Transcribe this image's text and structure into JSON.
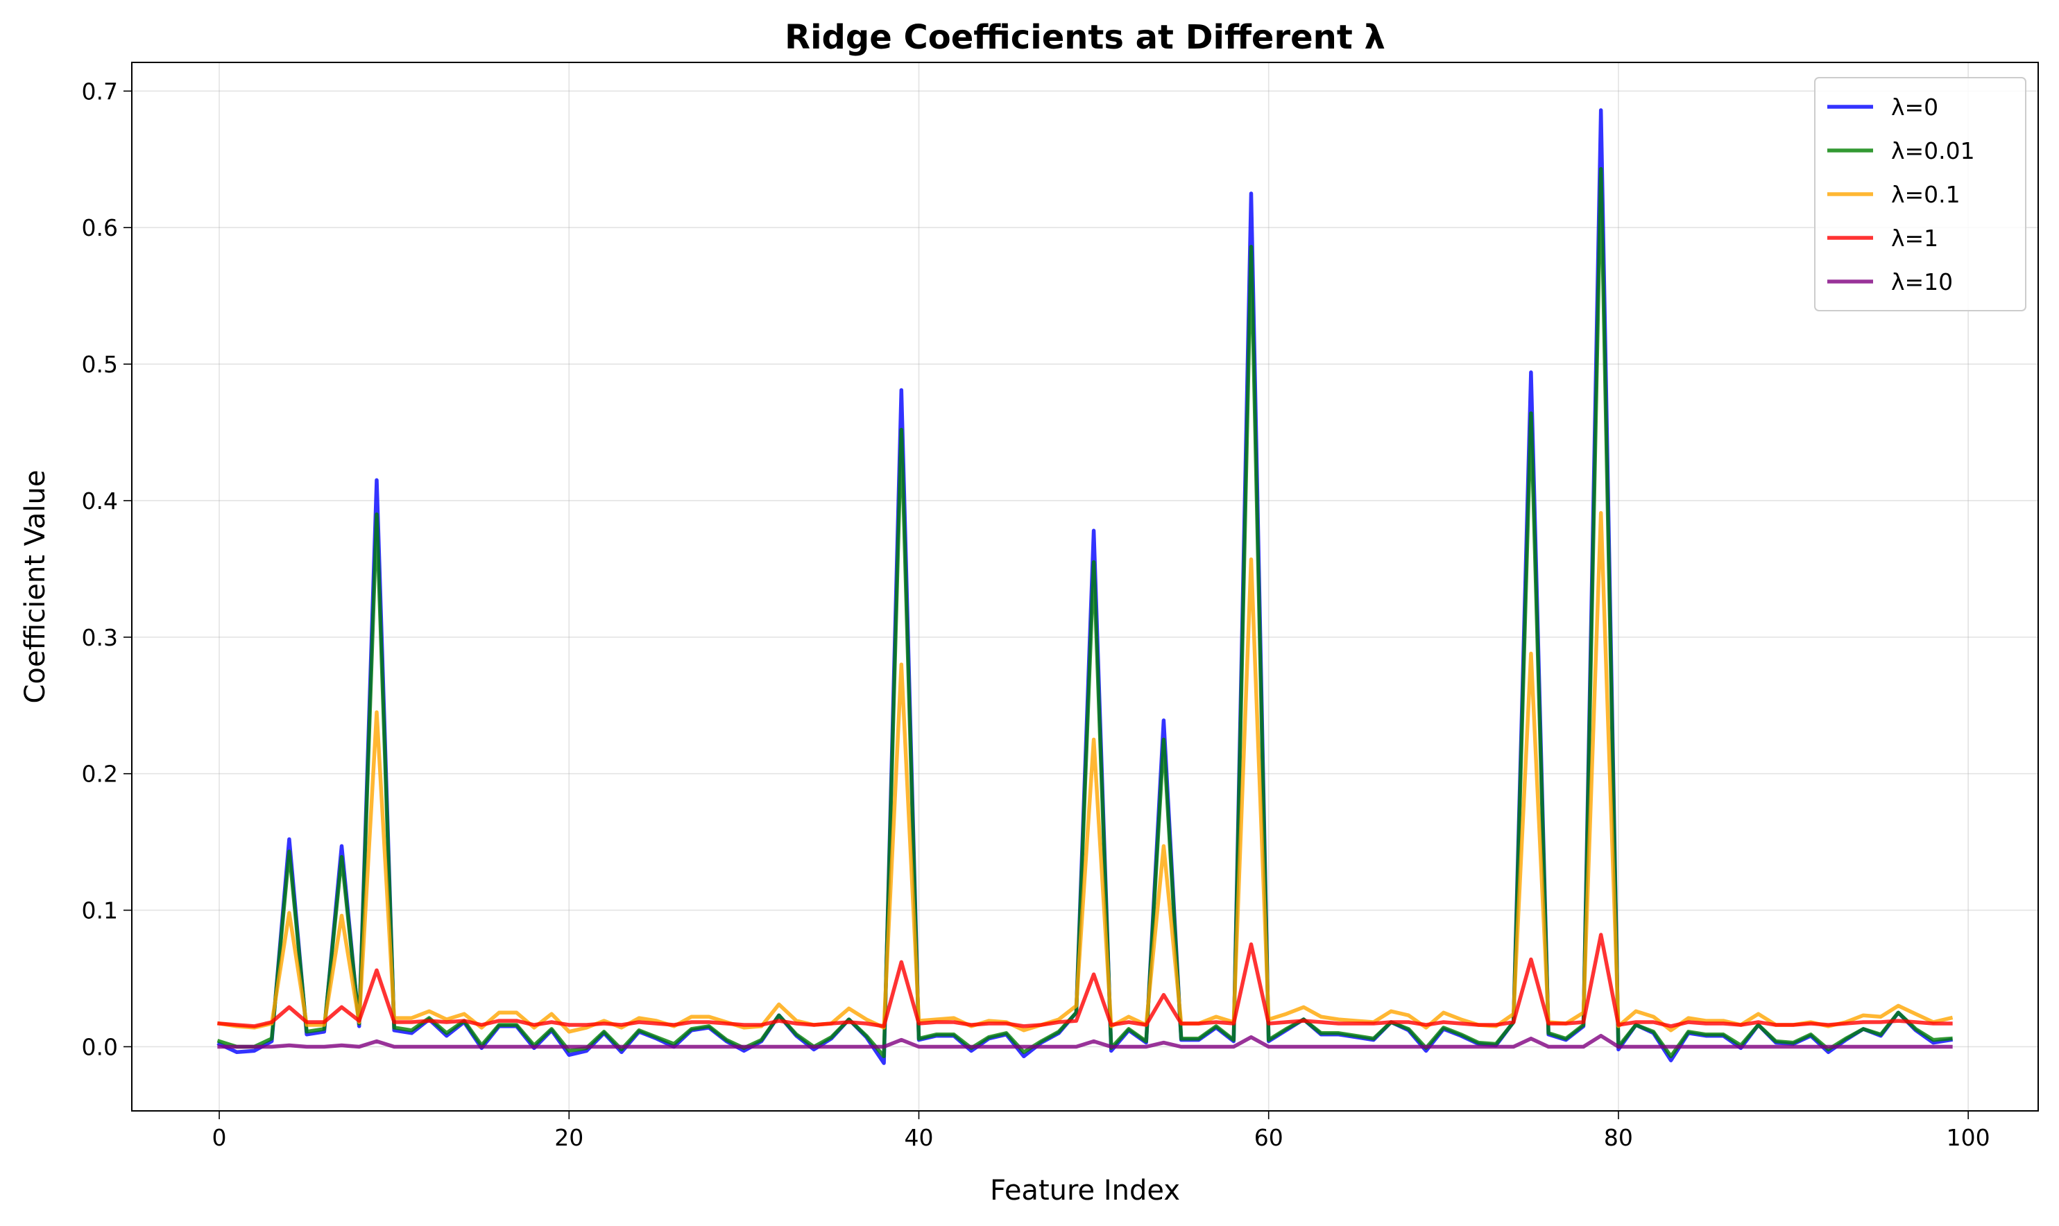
{
  "chart_data": {
    "type": "line",
    "title": "Ridge Coefficients at Different λ",
    "xlabel": "Feature Index",
    "ylabel": "Coefficient Value",
    "xlim": [
      -5,
      104
    ],
    "ylim": [
      -0.047,
      0.721
    ],
    "xticks": [
      0,
      20,
      40,
      60,
      80,
      100
    ],
    "xtick_labels": [
      "0",
      "20",
      "40",
      "60",
      "80",
      "100"
    ],
    "yticks": [
      0.0,
      0.1,
      0.2,
      0.3,
      0.4,
      0.5,
      0.6,
      0.7
    ],
    "ytick_labels": [
      "0.0",
      "0.1",
      "0.2",
      "0.3",
      "0.4",
      "0.5",
      "0.6",
      "0.7"
    ],
    "grid": true,
    "legend_position": "top-right",
    "x": [
      0,
      1,
      2,
      3,
      4,
      5,
      6,
      7,
      8,
      9,
      10,
      11,
      12,
      13,
      14,
      15,
      16,
      17,
      18,
      19,
      20,
      21,
      22,
      23,
      24,
      25,
      26,
      27,
      28,
      29,
      30,
      31,
      32,
      33,
      34,
      35,
      36,
      37,
      38,
      39,
      40,
      41,
      42,
      43,
      44,
      45,
      46,
      47,
      48,
      49,
      50,
      51,
      52,
      53,
      54,
      55,
      56,
      57,
      58,
      59,
      60,
      61,
      62,
      63,
      64,
      65,
      66,
      67,
      68,
      69,
      70,
      71,
      72,
      73,
      74,
      75,
      76,
      77,
      78,
      79,
      80,
      81,
      82,
      83,
      84,
      85,
      86,
      87,
      88,
      89,
      90,
      91,
      92,
      93,
      94,
      95,
      96,
      97,
      98,
      99
    ],
    "series": [
      {
        "name": "λ=0",
        "color": "#0000ff",
        "values": [
          0.002,
          -0.004,
          -0.003,
          0.004,
          0.152,
          0.009,
          0.011,
          0.147,
          0.015,
          0.415,
          0.012,
          0.01,
          0.02,
          0.008,
          0.018,
          -0.001,
          0.015,
          0.015,
          -0.001,
          0.012,
          -0.006,
          -0.003,
          0.01,
          -0.004,
          0.011,
          0.006,
          0.0,
          0.012,
          0.014,
          0.004,
          -0.003,
          0.004,
          0.023,
          0.008,
          -0.002,
          0.006,
          0.02,
          0.007,
          -0.012,
          0.481,
          0.005,
          0.008,
          0.008,
          -0.003,
          0.006,
          0.009,
          -0.007,
          0.003,
          0.01,
          0.025,
          0.378,
          -0.003,
          0.012,
          0.003,
          0.239,
          0.005,
          0.005,
          0.014,
          0.004,
          0.625,
          0.004,
          0.012,
          0.02,
          0.009,
          0.009,
          0.007,
          0.005,
          0.018,
          0.012,
          -0.003,
          0.013,
          0.008,
          0.002,
          0.001,
          0.018,
          0.494,
          0.009,
          0.005,
          0.015,
          0.686,
          -0.002,
          0.016,
          0.01,
          -0.01,
          0.01,
          0.008,
          0.008,
          -0.001,
          0.016,
          0.003,
          0.002,
          0.008,
          -0.004,
          0.005,
          0.013,
          0.008,
          0.025,
          0.012,
          0.003,
          0.005
        ]
      },
      {
        "name": "λ=0.01",
        "color": "#008000",
        "values": [
          0.004,
          0.0,
          0.0,
          0.006,
          0.143,
          0.011,
          0.013,
          0.139,
          0.017,
          0.39,
          0.014,
          0.012,
          0.021,
          0.01,
          0.019,
          0.001,
          0.016,
          0.016,
          0.001,
          0.013,
          -0.003,
          -0.001,
          0.011,
          -0.002,
          0.012,
          0.007,
          0.002,
          0.013,
          0.015,
          0.005,
          -0.001,
          0.005,
          0.023,
          0.009,
          0.0,
          0.007,
          0.02,
          0.008,
          -0.007,
          0.452,
          0.006,
          0.009,
          0.009,
          -0.001,
          0.007,
          0.01,
          -0.004,
          0.004,
          0.011,
          0.025,
          0.355,
          -0.001,
          0.013,
          0.004,
          0.225,
          0.006,
          0.006,
          0.015,
          0.005,
          0.586,
          0.005,
          0.013,
          0.02,
          0.01,
          0.01,
          0.008,
          0.006,
          0.018,
          0.013,
          -0.001,
          0.014,
          0.009,
          0.003,
          0.002,
          0.018,
          0.464,
          0.01,
          0.006,
          0.016,
          0.643,
          0.0,
          0.016,
          0.011,
          -0.007,
          0.011,
          0.009,
          0.009,
          0.001,
          0.016,
          0.004,
          0.003,
          0.009,
          -0.002,
          0.006,
          0.013,
          0.009,
          0.025,
          0.013,
          0.005,
          0.006
        ]
      },
      {
        "name": "λ=0.1",
        "color": "#ffa500",
        "values": [
          0.017,
          0.015,
          0.014,
          0.017,
          0.098,
          0.016,
          0.016,
          0.096,
          0.018,
          0.245,
          0.021,
          0.021,
          0.026,
          0.02,
          0.024,
          0.014,
          0.025,
          0.025,
          0.014,
          0.024,
          0.011,
          0.014,
          0.019,
          0.014,
          0.021,
          0.019,
          0.015,
          0.022,
          0.022,
          0.018,
          0.014,
          0.015,
          0.031,
          0.019,
          0.016,
          0.017,
          0.028,
          0.02,
          0.014,
          0.28,
          0.019,
          0.02,
          0.021,
          0.015,
          0.019,
          0.018,
          0.012,
          0.016,
          0.02,
          0.03,
          0.225,
          0.015,
          0.022,
          0.016,
          0.147,
          0.017,
          0.017,
          0.022,
          0.018,
          0.357,
          0.02,
          0.024,
          0.029,
          0.022,
          0.02,
          0.019,
          0.018,
          0.026,
          0.023,
          0.014,
          0.025,
          0.02,
          0.016,
          0.015,
          0.024,
          0.288,
          0.018,
          0.017,
          0.025,
          0.391,
          0.015,
          0.026,
          0.022,
          0.012,
          0.021,
          0.019,
          0.019,
          0.016,
          0.024,
          0.016,
          0.016,
          0.018,
          0.015,
          0.018,
          0.023,
          0.022,
          0.03,
          0.024,
          0.018,
          0.021
        ]
      },
      {
        "name": "λ=1",
        "color": "#ff0000",
        "values": [
          0.017,
          0.016,
          0.015,
          0.018,
          0.029,
          0.018,
          0.018,
          0.029,
          0.019,
          0.056,
          0.018,
          0.018,
          0.019,
          0.018,
          0.019,
          0.016,
          0.019,
          0.019,
          0.016,
          0.018,
          0.016,
          0.016,
          0.017,
          0.016,
          0.018,
          0.017,
          0.016,
          0.018,
          0.018,
          0.017,
          0.016,
          0.016,
          0.019,
          0.017,
          0.016,
          0.017,
          0.018,
          0.017,
          0.015,
          0.062,
          0.017,
          0.018,
          0.018,
          0.016,
          0.017,
          0.017,
          0.015,
          0.016,
          0.018,
          0.019,
          0.053,
          0.016,
          0.018,
          0.016,
          0.038,
          0.017,
          0.017,
          0.018,
          0.017,
          0.075,
          0.017,
          0.018,
          0.019,
          0.018,
          0.017,
          0.017,
          0.017,
          0.018,
          0.018,
          0.016,
          0.018,
          0.017,
          0.016,
          0.016,
          0.018,
          0.064,
          0.017,
          0.017,
          0.018,
          0.082,
          0.016,
          0.018,
          0.018,
          0.015,
          0.018,
          0.017,
          0.017,
          0.016,
          0.018,
          0.016,
          0.016,
          0.017,
          0.016,
          0.017,
          0.018,
          0.018,
          0.019,
          0.018,
          0.017,
          0.017
        ]
      },
      {
        "name": "λ=10",
        "color": "#800080",
        "values": [
          0.0,
          0.0,
          0.0,
          0.0,
          0.001,
          0.0,
          0.0,
          0.001,
          0.0,
          0.004,
          0.0,
          0.0,
          0.0,
          0.0,
          0.0,
          0.0,
          0.0,
          0.0,
          0.0,
          0.0,
          0.0,
          0.0,
          0.0,
          0.0,
          0.0,
          0.0,
          0.0,
          0.0,
          0.0,
          0.0,
          0.0,
          0.0,
          0.0,
          0.0,
          0.0,
          0.0,
          0.0,
          0.0,
          0.0,
          0.005,
          0.0,
          0.0,
          0.0,
          0.0,
          0.0,
          0.0,
          0.0,
          0.0,
          0.0,
          0.0,
          0.004,
          0.0,
          0.0,
          0.0,
          0.003,
          0.0,
          0.0,
          0.0,
          0.0,
          0.007,
          0.0,
          0.0,
          0.0,
          0.0,
          0.0,
          0.0,
          0.0,
          0.0,
          0.0,
          0.0,
          0.0,
          0.0,
          0.0,
          0.0,
          0.0,
          0.006,
          0.0,
          0.0,
          0.0,
          0.008,
          0.0,
          0.0,
          0.0,
          0.0,
          0.0,
          0.0,
          0.0,
          0.0,
          0.0,
          0.0,
          0.0,
          0.0,
          0.0,
          0.0,
          0.0,
          0.0,
          0.0,
          0.0,
          0.0,
          0.0
        ]
      }
    ]
  }
}
